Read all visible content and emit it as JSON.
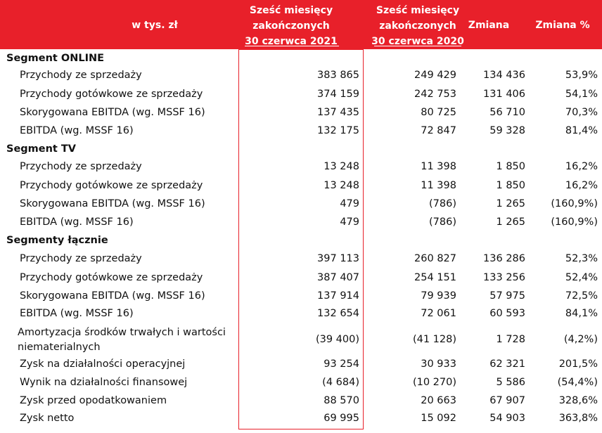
{
  "header": {
    "label": "w tys. zł",
    "col_2021": "Sześć miesięcy\nzakończonych\n30 czerwca 2021",
    "col_2020": "Sześć miesięcy\nzakończonych\n30 czerwca 2020",
    "col_change": "Zmiana",
    "col_change_pct": "Zmiana %"
  },
  "colors": {
    "header_bg": "#e8202a",
    "header_text": "#ffffff",
    "highlight_border": "#e8202a"
  },
  "rows": [
    {
      "type": "section",
      "label": "Segment ONLINE"
    },
    {
      "type": "item",
      "label": "Przychody ze sprzedaży",
      "v2021": "383 865",
      "v2020": "249 429",
      "change": "134 436",
      "pct": "53,9%"
    },
    {
      "type": "item",
      "label": "Przychody gotówkowe ze sprzedaży",
      "v2021": "374 159",
      "v2020": "242 753",
      "change": "131 406",
      "pct": "54,1%"
    },
    {
      "type": "item",
      "label": "Skorygowana EBITDA (wg. MSSF 16)",
      "v2021": "137 435",
      "v2020": "80 725",
      "change": "56 710",
      "pct": "70,3%"
    },
    {
      "type": "item",
      "label": "EBITDA (wg. MSSF 16)",
      "v2021": "132 175",
      "v2020": "72 847",
      "change": "59 328",
      "pct": "81,4%"
    },
    {
      "type": "section",
      "label": "Segment TV"
    },
    {
      "type": "item",
      "label": "Przychody ze sprzedaży",
      "v2021": "13 248",
      "v2020": "11 398",
      "change": "1 850",
      "pct": "16,2%"
    },
    {
      "type": "item",
      "label": "Przychody gotówkowe ze sprzedaży",
      "v2021": "13 248",
      "v2020": "11 398",
      "change": "1 850",
      "pct": "16,2%"
    },
    {
      "type": "item",
      "label": "Skorygowana EBITDA (wg. MSSF 16)",
      "v2021": "479",
      "v2020": "(786)",
      "change": "1 265",
      "pct": "(160,9%)"
    },
    {
      "type": "item",
      "label": "EBITDA (wg. MSSF 16)",
      "v2021": "479",
      "v2020": "(786)",
      "change": "1 265",
      "pct": "(160,9%)"
    },
    {
      "type": "section",
      "label": "Segmenty łącznie"
    },
    {
      "type": "item",
      "label": "Przychody ze sprzedaży",
      "v2021": "397 113",
      "v2020": "260 827",
      "change": "136 286",
      "pct": "52,3%"
    },
    {
      "type": "item",
      "label": "Przychody gotówkowe ze sprzedaży",
      "v2021": "387 407",
      "v2020": "254 151",
      "change": "133 256",
      "pct": "52,4%"
    },
    {
      "type": "item",
      "label": "Skorygowana EBITDA (wg. MSSF 16)",
      "v2021": "137 914",
      "v2020": "79 939",
      "change": "57 975",
      "pct": "72,5%"
    },
    {
      "type": "item",
      "label": "EBITDA (wg. MSSF 16)",
      "v2021": "132 654",
      "v2020": "72 061",
      "change": "60 593",
      "pct": "84,1%"
    },
    {
      "type": "item",
      "label": "Amortyzacja środków trwałych i wartości niematerialnych",
      "v2021": "(39 400)",
      "v2020": "(41 128)",
      "change": "1 728",
      "pct": "(4,2%)",
      "wrap": true
    },
    {
      "type": "item",
      "label": "Zysk na działalności operacyjnej",
      "v2021": "93 254",
      "v2020": "30 933",
      "change": "62 321",
      "pct": "201,5%"
    },
    {
      "type": "item",
      "label": "Wynik na działalności finansowej",
      "v2021": "(4 684)",
      "v2020": "(10 270)",
      "change": "5 586",
      "pct": "(54,4%)"
    },
    {
      "type": "item",
      "label": "Zysk przed opodatkowaniem",
      "v2021": "88 570",
      "v2020": "20 663",
      "change": "67 907",
      "pct": "328,6%"
    },
    {
      "type": "item",
      "label": "Zysk netto",
      "v2021": "69 995",
      "v2020": "15 092",
      "change": "54 903",
      "pct": "363,8%"
    }
  ]
}
